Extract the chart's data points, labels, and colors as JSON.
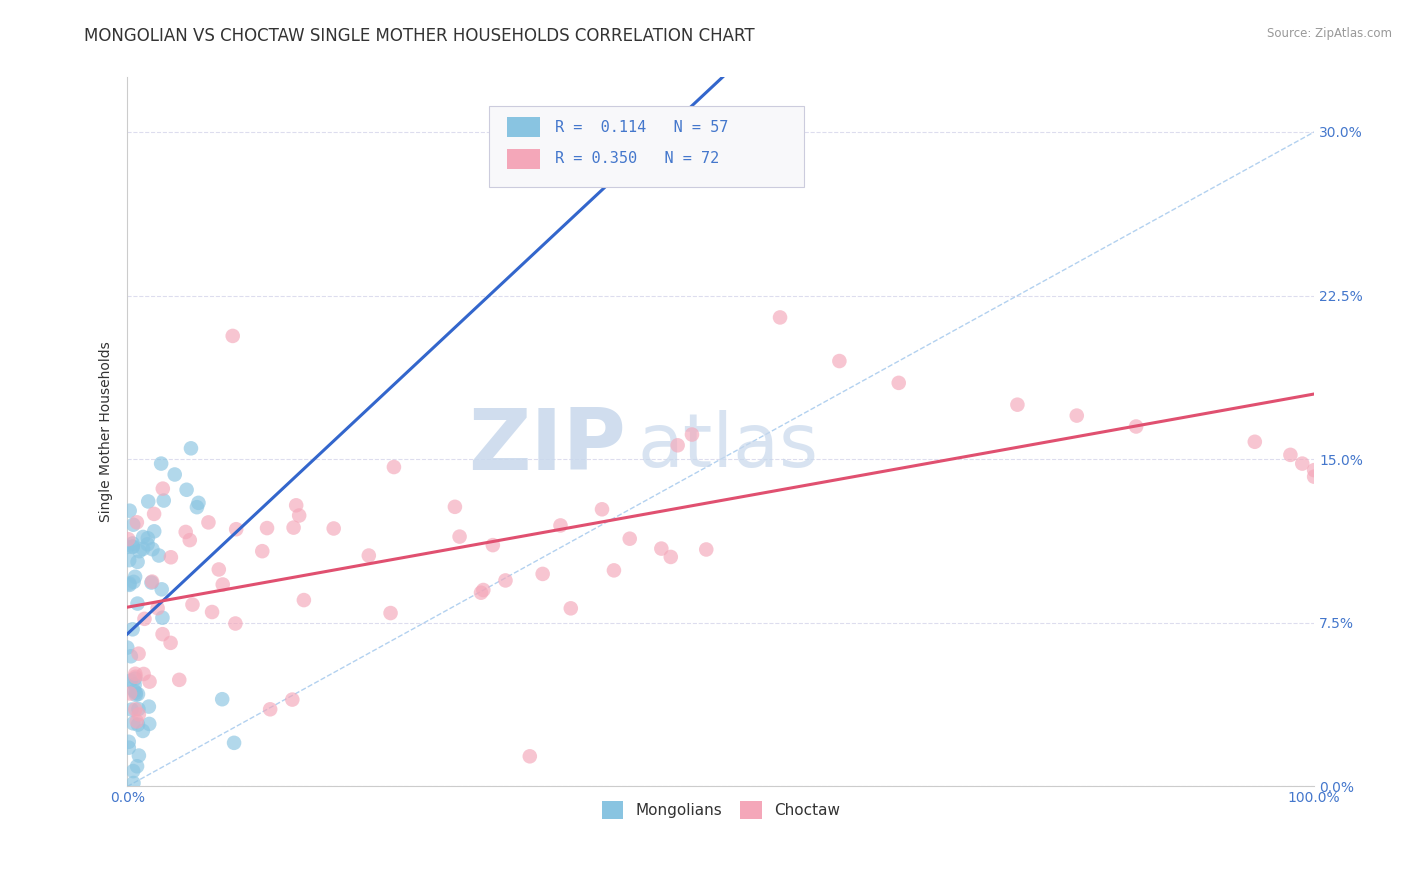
{
  "title": "MONGOLIAN VS CHOCTAW SINGLE MOTHER HOUSEHOLDS CORRELATION CHART",
  "source": "Source: ZipAtlas.com",
  "ylabel": "Single Mother Households",
  "xlim": [
    0.0,
    1.0
  ],
  "ylim": [
    0.0,
    0.325
  ],
  "xticks": [
    0.0,
    0.25,
    0.5,
    0.75,
    1.0
  ],
  "xticklabels": [
    "0.0%",
    "",
    "",
    "",
    "100.0%"
  ],
  "yticks": [
    0.0,
    0.075,
    0.15,
    0.225,
    0.3
  ],
  "yticklabels": [
    "0.0%",
    "7.5%",
    "15.0%",
    "22.5%",
    "30.0%"
  ],
  "mongolian_color": "#89C4E1",
  "choctaw_color": "#F4A7B9",
  "mongolian_line_color": "#3366CC",
  "choctaw_line_color": "#E05070",
  "diagonal_color": "#AACCEE",
  "R_mongolian": 0.114,
  "N_mongolian": 57,
  "R_choctaw": 0.35,
  "N_choctaw": 72,
  "background_color": "#FFFFFF",
  "grid_color": "#DDDDEE",
  "watermark_zip": "ZIP",
  "watermark_atlas": "atlas",
  "watermark_color_zip": "#C8D8EC",
  "watermark_color_atlas": "#C8D8EC",
  "legend_label_color": "#4477CC",
  "tick_color": "#4477CC",
  "legend_entries": [
    "Mongolians",
    "Choctaw"
  ],
  "title_fontsize": 12,
  "axis_label_fontsize": 10,
  "tick_fontsize": 10,
  "legend_fontsize": 11
}
